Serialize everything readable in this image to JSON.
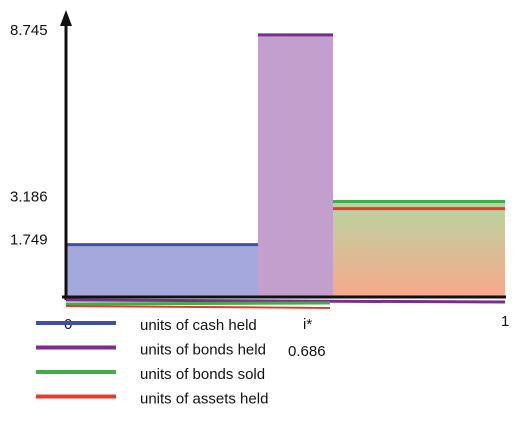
{
  "chart_data": {
    "type": "bar",
    "ylim": [
      0,
      9.41
    ],
    "yticks": [
      1.749,
      3.186,
      8.745
    ],
    "x_labels": [
      "0",
      "i*",
      "1"
    ],
    "annotation": "0.686",
    "series": [
      {
        "name": "units of cash held",
        "color": "#3f4fa8",
        "values": [
          1.749
        ]
      },
      {
        "name": "units of bonds held",
        "color": "#7a2e8e",
        "values": [
          8.745
        ]
      },
      {
        "name": "units of bonds sold",
        "color": "#3fae4a",
        "values": [
          3.186
        ]
      },
      {
        "name": "units of assets held",
        "color": "#e8392f",
        "values": [
          2.95
        ]
      }
    ]
  }
}
